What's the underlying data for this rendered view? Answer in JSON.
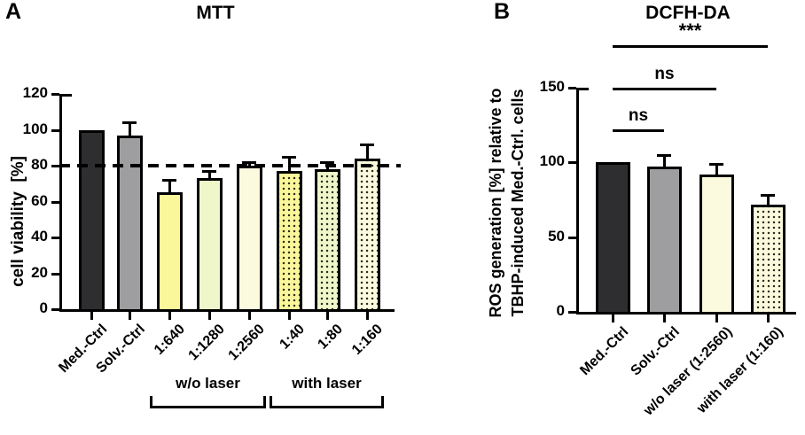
{
  "chart_data": [
    {
      "type": "bar",
      "panel_letter": "A",
      "title": "MTT",
      "ylabel": "cell viability  [%]",
      "ylim": [
        0,
        120
      ],
      "yticks": [
        0,
        20,
        40,
        60,
        80,
        100,
        120
      ],
      "reference_line": 80,
      "categories": [
        "Med.-Ctrl",
        "Solv.-Ctrl",
        "1:640",
        "1:1280",
        "1:2560",
        "1:40",
        "1:80",
        "1:160"
      ],
      "values": [
        100,
        97,
        65,
        73,
        80,
        77,
        78,
        84
      ],
      "errors": [
        0,
        7,
        7,
        4,
        2,
        8,
        4,
        8
      ],
      "bars": [
        {
          "fill": "#2e2e30",
          "pattern": "solid"
        },
        {
          "fill": "#9e9ea0",
          "pattern": "solid"
        },
        {
          "fill": "#faf79b",
          "pattern": "solid"
        },
        {
          "fill": "#eff6c9",
          "pattern": "solid"
        },
        {
          "fill": "#fbfadf",
          "pattern": "solid"
        },
        {
          "fill": "#faf79b",
          "pattern": "dotted"
        },
        {
          "fill": "#eff6c9",
          "pattern": "dotted"
        },
        {
          "fill": "#fbfadf",
          "pattern": "dotted"
        }
      ],
      "group_brackets": [
        {
          "label": "w/o laser",
          "from_index": 2,
          "to_index": 4
        },
        {
          "label": "with laser",
          "from_index": 5,
          "to_index": 7
        }
      ],
      "grid": "off",
      "legend": "none"
    },
    {
      "type": "bar",
      "panel_letter": "B",
      "title": "DCFH-DA",
      "ylabel_lines": [
        "ROS generation [%] relative to",
        "TBHP-induced Med.-Ctrl. cells"
      ],
      "ylim": [
        0,
        150
      ],
      "yticks": [
        0,
        50,
        100,
        150
      ],
      "categories": [
        "Med.-Ctrl",
        "Solv.-Ctrl",
        "w/o laser (1:2560)",
        "with laser (1:160)"
      ],
      "values": [
        100,
        97,
        92,
        72
      ],
      "errors": [
        0,
        8,
        7,
        6
      ],
      "bars": [
        {
          "fill": "#2e2e30",
          "pattern": "solid"
        },
        {
          "fill": "#9e9ea0",
          "pattern": "solid"
        },
        {
          "fill": "#fbfadf",
          "pattern": "solid"
        },
        {
          "fill": "#fbfadf",
          "pattern": "dotted"
        }
      ],
      "significance": [
        {
          "label": "***",
          "from_index": 0,
          "to_index": 3
        },
        {
          "label": "ns",
          "from_index": 0,
          "to_index": 2
        },
        {
          "label": "ns",
          "from_index": 0,
          "to_index": 1
        }
      ],
      "grid": "off",
      "legend": "none"
    }
  ]
}
